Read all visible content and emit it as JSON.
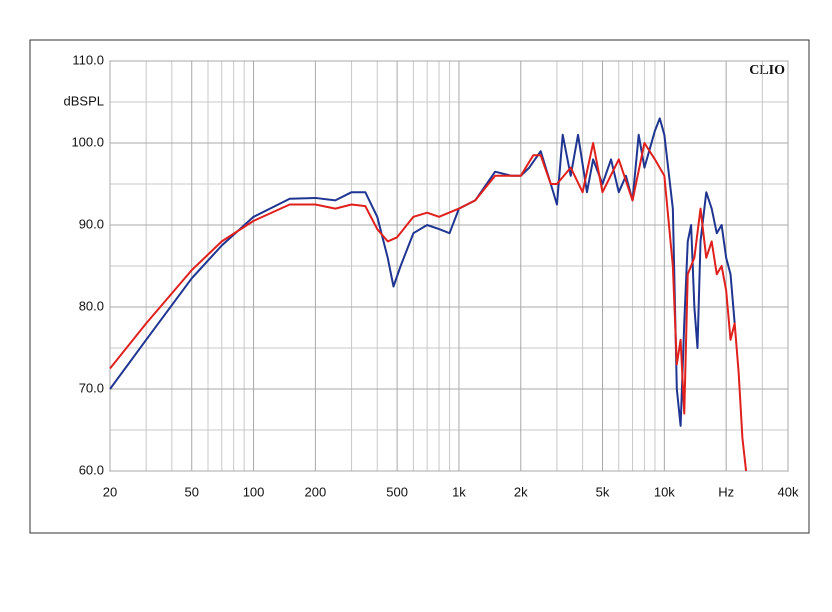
{
  "chart_data": {
    "type": "line",
    "log_x": true,
    "grid": true,
    "y_label": "dBSPL",
    "annotation": "CLIO",
    "xlim": [
      20,
      40000
    ],
    "ylim": [
      60,
      110
    ],
    "xticks": [
      20,
      50,
      100,
      200,
      500,
      {
        "value": 1000,
        "label": "1k"
      },
      {
        "value": 2000,
        "label": "2k"
      },
      {
        "value": 5000,
        "label": "5k"
      },
      {
        "value": 10000,
        "label": "10k"
      },
      {
        "value": 20000,
        "label": "Hz"
      },
      {
        "value": 40000,
        "label": "40k"
      }
    ],
    "minor_xticks": [
      30,
      40,
      60,
      70,
      80,
      90,
      300,
      400,
      600,
      700,
      800,
      900,
      3000,
      4000,
      6000,
      7000,
      8000,
      9000,
      30000
    ],
    "yticks": [
      {
        "value": 60,
        "label": "60.0"
      },
      {
        "value": 70,
        "label": "70.0"
      },
      {
        "value": 80,
        "label": "80.0"
      },
      {
        "value": 90,
        "label": "90.0"
      },
      {
        "value": 100,
        "label": "100.0"
      },
      {
        "value": 110,
        "label": "110.0"
      }
    ],
    "minor_yticks": [
      65,
      75,
      85,
      95,
      105
    ],
    "series": [
      {
        "color": "#1f3591",
        "x": [
          20,
          30,
          50,
          70,
          100,
          150,
          200,
          250,
          300,
          350,
          400,
          450,
          480,
          520,
          600,
          700,
          800,
          900,
          1000,
          1200,
          1500,
          1800,
          2000,
          2200,
          2500,
          2800,
          3000,
          3200,
          3500,
          3800,
          4200,
          4500,
          5000,
          5500,
          6000,
          6500,
          7000,
          7500,
          8000,
          9000,
          9500,
          10000,
          11000,
          11500,
          12000,
          12500,
          13000,
          13500,
          14000,
          14500,
          15000,
          16000,
          17000,
          18000,
          19000,
          20000,
          21000,
          22000
        ],
        "values": [
          70,
          76,
          83.5,
          87.5,
          91,
          93.2,
          93.3,
          93,
          94,
          94,
          91,
          86,
          82.5,
          85,
          89,
          90,
          89.5,
          89,
          92,
          93,
          96.5,
          96,
          96,
          97,
          99,
          95,
          92.5,
          101,
          96,
          101,
          94,
          98,
          95,
          98,
          94,
          96,
          93,
          101,
          97,
          101.5,
          103,
          101,
          92,
          70,
          65.5,
          78,
          88,
          90,
          80,
          75,
          88,
          94,
          92,
          89,
          90,
          86,
          84,
          78
        ]
      },
      {
        "color": "#e0201c",
        "x": [
          20,
          30,
          50,
          70,
          100,
          150,
          200,
          250,
          300,
          350,
          400,
          450,
          500,
          600,
          700,
          800,
          1000,
          1200,
          1500,
          2000,
          2300,
          2500,
          2800,
          3000,
          3500,
          4000,
          4500,
          5000,
          6000,
          7000,
          8000,
          9000,
          10000,
          11000,
          11500,
          12000,
          12500,
          13000,
          14000,
          15000,
          16000,
          17000,
          18000,
          19000,
          20000,
          21000,
          22000,
          23000,
          24000,
          25000
        ],
        "values": [
          72.5,
          78,
          84.5,
          88,
          90.5,
          92.5,
          92.5,
          92,
          92.5,
          92.3,
          89.5,
          88,
          88.5,
          91,
          91.5,
          91,
          92,
          93,
          96,
          96,
          98.5,
          98.5,
          95,
          95,
          97,
          94,
          100,
          94,
          98,
          93,
          100,
          98,
          96,
          85,
          73,
          76,
          67,
          84,
          86,
          92,
          86,
          88,
          84,
          85,
          82,
          76,
          78,
          72,
          64,
          60
        ]
      }
    ]
  }
}
